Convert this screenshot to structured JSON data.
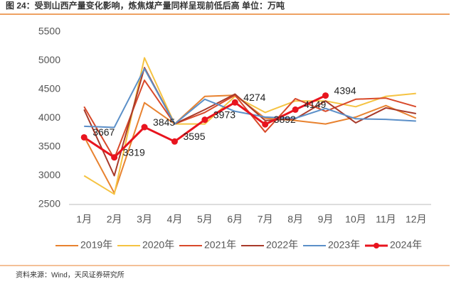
{
  "chart_data": {
    "type": "line",
    "title": "图 24：受到山西产量变化影响，炼焦煤产量同样呈现前低后高 单位：万吨",
    "source": "资料来源：Wind，天风证券研究所",
    "categories": [
      "1月",
      "2月",
      "3月",
      "4月",
      "5月",
      "6月",
      "7月",
      "8月",
      "9月",
      "10月",
      "11月",
      "12月"
    ],
    "ylim": [
      2500,
      5500
    ],
    "yticks": [
      2500,
      3000,
      3500,
      4000,
      4500,
      5000,
      5500
    ],
    "series": [
      {
        "name": "2019年",
        "color": "#e8822f",
        "values": [
          3680,
          2700,
          4270,
          3900,
          4380,
          4400,
          4000,
          3960,
          3900,
          4020,
          4220,
          4000
        ]
      },
      {
        "name": "2020年",
        "color": "#f5c342",
        "values": [
          3000,
          2680,
          5050,
          3900,
          3900,
          4380,
          4100,
          4300,
          4300,
          4200,
          4380,
          4430
        ]
      },
      {
        "name": "2021年",
        "color": "#d8492a",
        "values": [
          4200,
          3300,
          4660,
          3900,
          4100,
          4400,
          3760,
          4340,
          4120,
          4330,
          4350,
          4200
        ]
      },
      {
        "name": "2022年",
        "color": "#a83a2a",
        "values": [
          4150,
          3000,
          4880,
          3900,
          4150,
          4420,
          3960,
          3990,
          4300,
          3920,
          4180,
          4080
        ]
      },
      {
        "name": "2023年",
        "color": "#5b8fc8",
        "values": [
          3860,
          3840,
          4860,
          3900,
          4330,
          4120,
          4020,
          4000,
          4170,
          3990,
          3980,
          3950
        ]
      },
      {
        "name": "2024年",
        "color": "#e8141e",
        "marker": "circle",
        "data_labels": true,
        "values": [
          3667,
          3319,
          3845,
          3595,
          3973,
          4274,
          3892,
          4149,
          4394,
          null,
          null,
          null
        ]
      }
    ]
  }
}
